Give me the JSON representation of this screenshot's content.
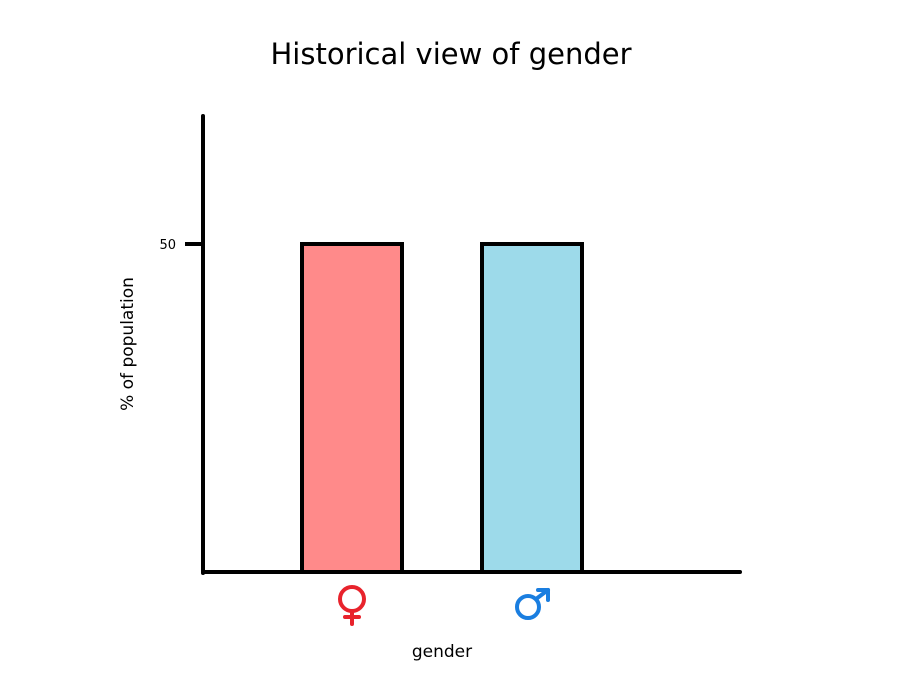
{
  "chart_data": {
    "type": "bar",
    "title": "Historical view of gender",
    "xlabel": "gender",
    "ylabel": "% of population",
    "categories": [
      {
        "name": "female",
        "icon": "female-symbol-icon",
        "color": "#ff8a8a",
        "icon_color": "#e8232c"
      },
      {
        "name": "male",
        "icon": "male-symbol-icon",
        "color": "#9ddaea",
        "icon_color": "#1a7ee0"
      }
    ],
    "values": [
      50,
      50
    ],
    "yticks": [
      {
        "value": 50,
        "label": "50"
      }
    ],
    "ylim": [
      0,
      70
    ],
    "grid": false,
    "legend": "none"
  }
}
